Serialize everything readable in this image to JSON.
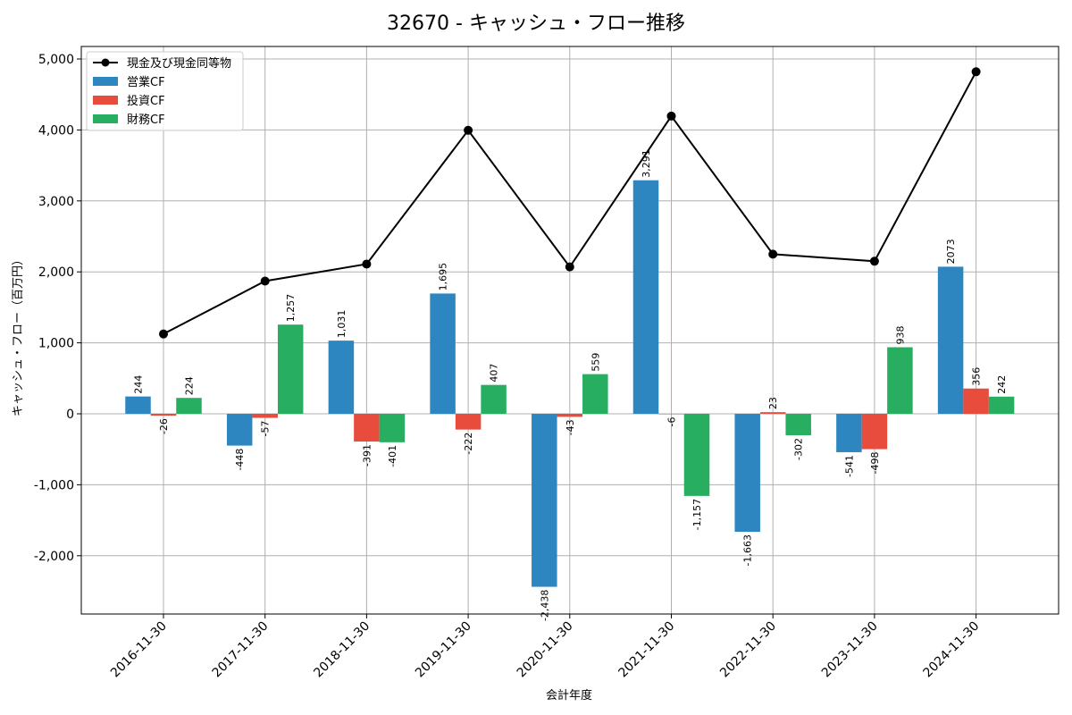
{
  "chart_data": {
    "type": "bar",
    "title": "32670 - キャッシュ・フロー推移",
    "xlabel": "会計年度",
    "ylabel": "キャッシュ・フロー（百万円）",
    "categories": [
      "2016-11-30",
      "2017-11-30",
      "2018-11-30",
      "2019-11-30",
      "2020-11-30",
      "2021-11-30",
      "2022-11-30",
      "2023-11-30",
      "2024-11-30"
    ],
    "ylim": [
      -2800,
      5200
    ],
    "yticks": [
      -2000,
      -1000,
      0,
      1000,
      2000,
      3000,
      4000,
      5000
    ],
    "ytick_labels": [
      "-2,000",
      "-1,000",
      "0",
      "1,000",
      "2,000",
      "3,000",
      "4,000",
      "5,000"
    ],
    "grid": true,
    "legend_position": "top-left",
    "series": [
      {
        "name": "営業CF",
        "kind": "bar",
        "color": "#2e86c1",
        "values": [
          244,
          -448,
          1031,
          1695,
          -2438,
          3291,
          -1663,
          -541,
          2073
        ],
        "labels": [
          "244",
          "-448",
          "1,031",
          "1,695",
          "-2,438",
          "3,291",
          "-1,663",
          "-541",
          "2073"
        ]
      },
      {
        "name": "投資CF",
        "kind": "bar",
        "color": "#e74c3c",
        "values": [
          -26,
          -57,
          -391,
          -222,
          -43,
          -6,
          23,
          -498,
          356
        ],
        "labels": [
          "-26",
          "-57",
          "-391",
          "-222",
          "-43",
          "-6",
          "23",
          "-498",
          "356"
        ]
      },
      {
        "name": "財務CF",
        "kind": "bar",
        "color": "#27ae60",
        "values": [
          224,
          1257,
          -401,
          407,
          559,
          -1157,
          -302,
          938,
          242
        ],
        "labels": [
          "224",
          "1,257",
          "-401",
          "407",
          "559",
          "-1,157",
          "-302",
          "938",
          "242"
        ]
      },
      {
        "name": "現金及び現金同等物",
        "kind": "line",
        "color": "#000000",
        "values": [
          1125,
          1870,
          2110,
          3995,
          2070,
          4195,
          2250,
          2150,
          4820
        ]
      }
    ]
  }
}
